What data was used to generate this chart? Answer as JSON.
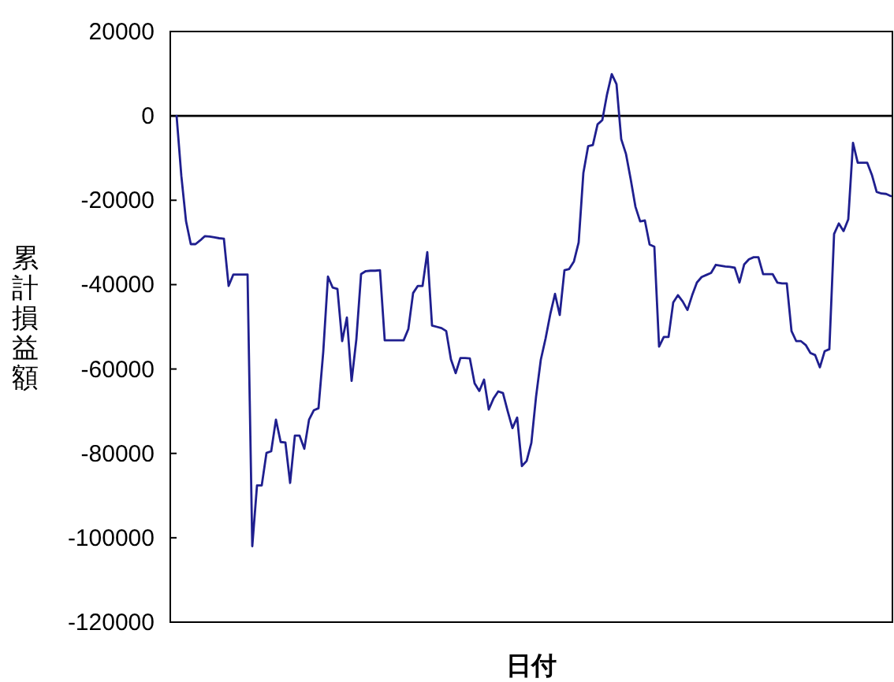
{
  "chart_data": {
    "type": "line",
    "xlabel": "日付",
    "ylabel": "累計損益額",
    "categories": [
      null,
      null,
      null,
      null,
      null,
      null,
      null,
      null,
      null,
      null,
      null,
      null,
      null,
      null,
      null,
      null,
      null,
      null,
      null,
      null,
      null,
      null,
      null,
      null,
      null,
      null,
      null,
      null,
      null,
      null,
      null,
      null,
      null,
      null,
      null,
      null,
      null,
      null,
      null,
      null,
      null,
      null,
      null,
      null,
      null,
      null,
      null,
      null,
      null,
      null,
      null,
      null,
      null,
      null,
      null,
      null,
      null,
      null,
      null,
      null,
      null,
      null,
      null,
      null,
      null,
      null,
      null,
      null,
      null,
      null,
      null,
      null,
      null,
      null,
      null,
      null,
      null,
      null,
      null,
      null,
      null,
      null,
      null,
      null,
      null,
      null,
      null,
      null,
      null,
      null,
      null,
      null,
      null,
      null,
      null,
      null,
      null,
      null,
      null,
      null,
      null,
      null,
      null,
      null,
      null,
      null,
      null,
      null,
      null,
      null,
      null,
      null,
      null,
      null,
      null,
      null,
      null,
      null,
      null,
      null,
      null,
      null,
      null,
      null,
      null,
      null,
      null,
      null,
      null,
      null,
      null,
      null,
      null,
      null,
      null,
      null,
      null,
      null,
      null,
      null,
      null,
      null,
      null,
      null,
      null,
      null,
      null,
      null,
      null,
      null,
      null,
      null
    ],
    "values": [
      0,
      -14200,
      -25000,
      -30400,
      -30400,
      -29500,
      -28500,
      -28600,
      -28800,
      -29000,
      -29100,
      -40300,
      -37600,
      -37600,
      -37600,
      -37600,
      -102000,
      -87600,
      -87600,
      -79900,
      -79500,
      -72000,
      -77300,
      -77400,
      -87000,
      -75800,
      -75800,
      -78900,
      -72000,
      -69800,
      -69300,
      -56000,
      -38100,
      -40700,
      -41000,
      -53400,
      -47800,
      -62800,
      -53000,
      -37500,
      -36800,
      -36700,
      -36700,
      -36600,
      -53200,
      -53200,
      -53200,
      -53200,
      -53200,
      -50500,
      -42000,
      -40300,
      -40300,
      -32300,
      -49700,
      -50000,
      -50300,
      -51000,
      -57700,
      -61000,
      -57400,
      -57400,
      -57500,
      -63400,
      -65200,
      -62500,
      -69600,
      -67000,
      -65300,
      -65700,
      -70000,
      -74000,
      -71500,
      -83000,
      -81800,
      -77500,
      -66500,
      -57800,
      -52800,
      -47000,
      -42200,
      -47200,
      -36600,
      -36300,
      -34500,
      -30000,
      -13500,
      -7200,
      -6900,
      -2000,
      -1000,
      5100,
      9900,
      7500,
      -5500,
      -9000,
      -15000,
      -21500,
      -25000,
      -24800,
      -30500,
      -31000,
      -54700,
      -52400,
      -52400,
      -44200,
      -42500,
      -44000,
      -46000,
      -42500,
      -39500,
      -38200,
      -37700,
      -37200,
      -35300,
      -35500,
      -35700,
      -35800,
      -36000,
      -39500,
      -35200,
      -34000,
      -33500,
      -33500,
      -37500,
      -37500,
      -37500,
      -39500,
      -39700,
      -39700,
      -51000,
      -53400,
      -53400,
      -54300,
      -56200,
      -56700,
      -59600,
      -55800,
      -55300,
      -28000,
      -25500,
      -27300,
      -24500,
      -6400,
      -11100,
      -11100,
      -11100,
      -14000,
      -18000,
      -18400,
      -18500,
      -19000
    ],
    "color": "#1f1f8f",
    "ylim": [
      -120000,
      20000
    ],
    "yticks": [
      20000,
      0,
      -20000,
      -40000,
      -60000,
      -80000,
      -100000,
      -120000
    ],
    "ref_lines": [
      {
        "axis": "y",
        "value": 0,
        "color": "#000000"
      }
    ]
  }
}
